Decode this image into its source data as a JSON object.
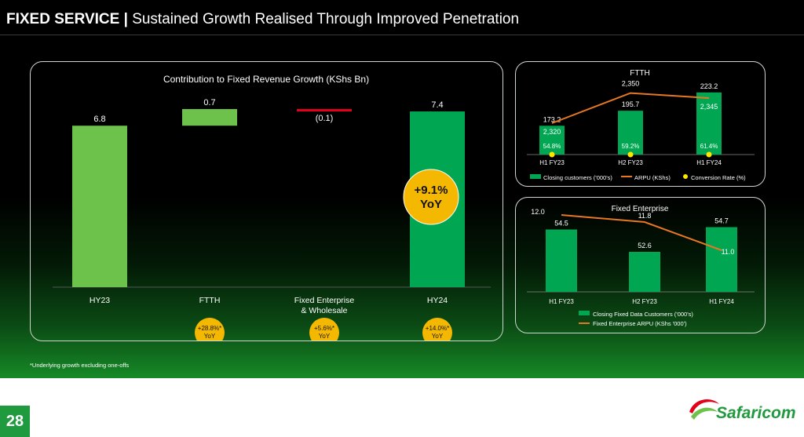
{
  "slide": {
    "title_bold": "FIXED SERVICE |",
    "title_rest": "Sustained Growth Realised Through Improved Penetration",
    "footnote": "*Underlying growth excluding one-offs",
    "page_number": "28",
    "logo_text": "Safaricom"
  },
  "chart_data": [
    {
      "type": "bar",
      "subtype": "waterfall",
      "title": "Contribution to Fixed Revenue Growth (KShs Bn)",
      "categories": [
        "HY23",
        "FTTH",
        "Fixed Enterprise & Wholesale",
        "HY24"
      ],
      "values": [
        6.8,
        0.7,
        -0.1,
        7.4
      ],
      "value_labels": [
        "6.8",
        "0.7",
        "(0.1)",
        "7.4"
      ],
      "category_labels": [
        [
          "HY23"
        ],
        [
          "FTTH"
        ],
        [
          "Fixed Enterprise",
          "& Wholesale"
        ],
        [
          "HY24"
        ]
      ],
      "colors": [
        "#6cc24a",
        "#6cc24a",
        "#e2001a",
        "#00a651"
      ],
      "badges": [
        null,
        "+28.8%*|YoY",
        "+5.6%*|YoY",
        "+14.0%*|YoY"
      ],
      "callout": "+9.1%|YoY",
      "ylim": [
        0,
        7.6
      ]
    },
    {
      "type": "bar",
      "title": "FTTH",
      "categories": [
        "H1 FY23",
        "H2 FY23",
        "H1 FY24"
      ],
      "series": [
        {
          "name": "Closing customers ('000's)",
          "kind": "bar",
          "values": [
            173.2,
            195.7,
            223.2
          ],
          "color": "#00a651"
        },
        {
          "name": "ARPU (KShs)",
          "kind": "line",
          "values": [
            2320,
            2350,
            2345
          ],
          "color": "#e87722"
        },
        {
          "name": "Conversion Rate (%)",
          "kind": "marker",
          "values": [
            54.8,
            59.2,
            61.4
          ],
          "color": "#ffe600"
        }
      ],
      "value_labels": {
        "bars": [
          "173.2",
          "195.7",
          "223.2"
        ],
        "line": [
          "2,320",
          "2,350",
          "2,345"
        ],
        "markers": [
          "54.8%",
          "59.2%",
          "61.4%"
        ]
      }
    },
    {
      "type": "bar",
      "title": "Fixed Enterprise",
      "categories": [
        "H1 FY23",
        "H2 FY23",
        "H1 FY24"
      ],
      "series": [
        {
          "name": "Closing Fixed Data Customers ('000's)",
          "kind": "bar",
          "values": [
            54.5,
            52.6,
            54.7
          ],
          "color": "#00a651"
        },
        {
          "name": "Fixed Enterprise ARPU (KShs '000')",
          "kind": "line",
          "values": [
            12.0,
            11.8,
            11.0
          ],
          "color": "#e87722"
        }
      ],
      "value_labels": {
        "bars": [
          "54.5",
          "52.6",
          "54.7"
        ],
        "line": [
          "12.0",
          "11.8",
          "11.0"
        ]
      }
    }
  ]
}
